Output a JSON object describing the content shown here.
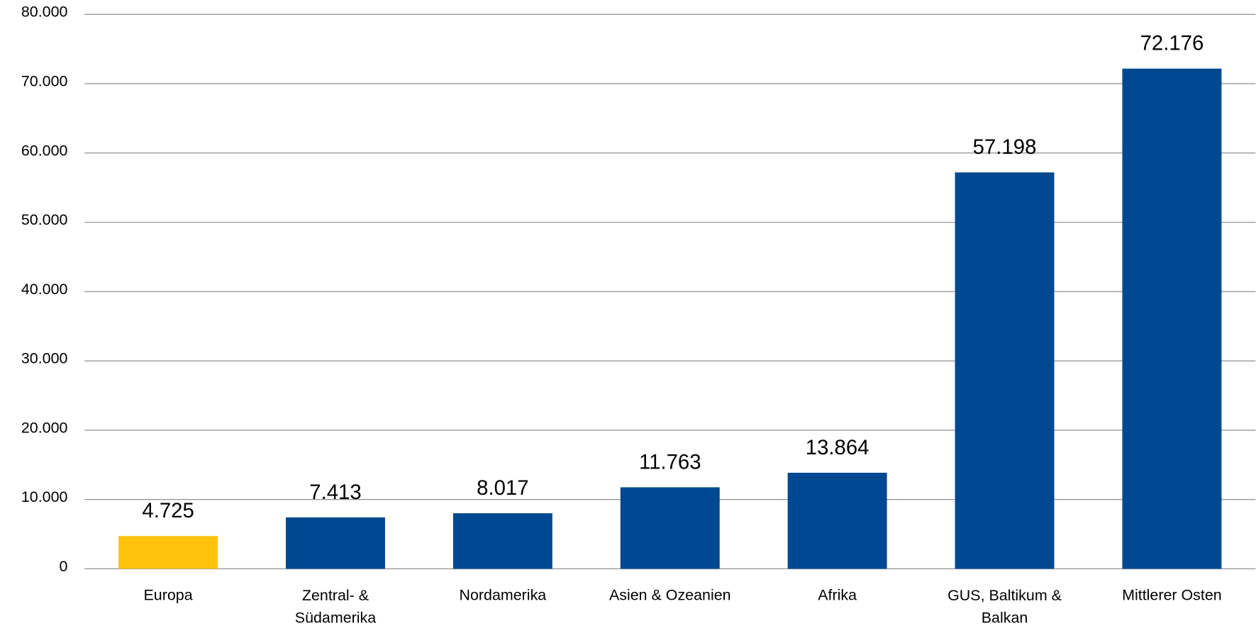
{
  "chart_data": {
    "type": "bar",
    "categories": [
      "Europa",
      "Zentral- &\nSüdamerika",
      "Nordamerika",
      "Asien & Ozeanien",
      "Afrika",
      "GUS, Baltikum &\nBalkan",
      "Mittlerer Osten"
    ],
    "values": [
      4725,
      7413,
      8017,
      11763,
      13864,
      57198,
      72176
    ],
    "value_labels": [
      "4.725",
      "7.413",
      "8.017",
      "11.763",
      "13.864",
      "57.198",
      "72.176"
    ],
    "colors": [
      "#ffc20e",
      "#004990",
      "#004990",
      "#004990",
      "#004990",
      "#004990",
      "#004990"
    ],
    "ylim": [
      0,
      80000
    ],
    "yticks": [
      0,
      {
        "value": 10000,
        "label": "10.000"
      },
      {
        "value": 20000,
        "label": "20.000"
      },
      {
        "value": 30000,
        "label": "30.000"
      },
      {
        "value": 40000,
        "label": "40.000"
      },
      {
        "value": 50000,
        "label": "50.000"
      },
      {
        "value": 60000,
        "label": "60.000"
      },
      {
        "value": 70000,
        "label": "70.000"
      },
      {
        "value": 80000,
        "label": "80.000"
      }
    ],
    "grid": true
  }
}
